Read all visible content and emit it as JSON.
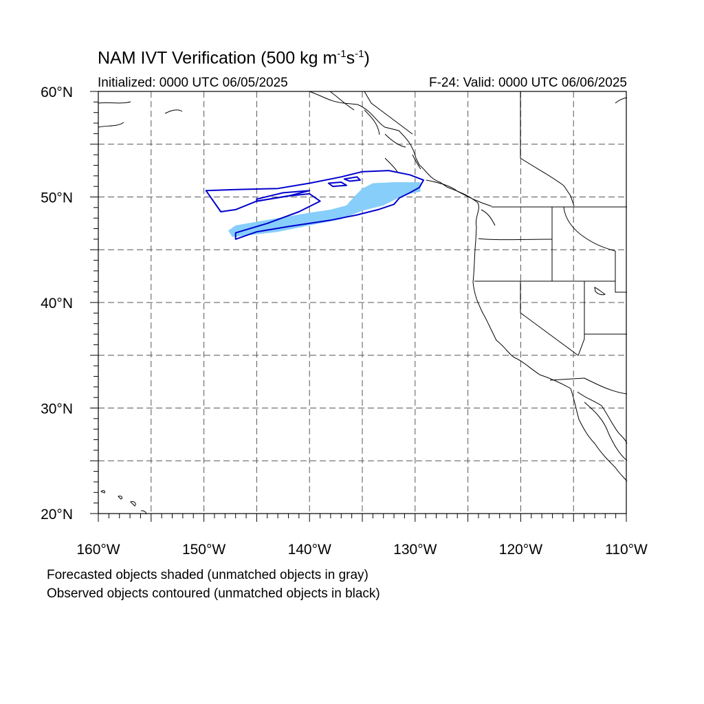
{
  "title": {
    "main": "NAM IVT Verification (500 kg m",
    "sup1": "-1",
    "mid": "s",
    "sup2": "-1",
    "end": ")"
  },
  "subtitle_left": "Initialized: 0000 UTC 06/05/2025",
  "subtitle_right": "F-24: Valid: 0000 UTC 06/06/2025",
  "footnotes": [
    "Forecasted objects shaded (unmatched objects in gray)",
    "Observed objects contoured (unmatched objects in black)"
  ],
  "map": {
    "lon_range": [
      -160,
      -110
    ],
    "lat_range": [
      20,
      60
    ],
    "grid_lines": "dashed",
    "lon_labels": [
      "160°W",
      "150°W",
      "140°W",
      "130°W",
      "120°W",
      "110°W"
    ],
    "lat_labels": [
      "20°N",
      "30°N",
      "40°N",
      "50°N",
      "60°N"
    ],
    "colors": {
      "forecast_fill": "#87cefa",
      "observed_contour": "#0000cd",
      "coastline": "#000000",
      "grid": "#555555"
    },
    "objects": [
      {
        "type": "forecast",
        "matched": true,
        "outline": [
          [
            -147,
            47.3
          ],
          [
            -143,
            48.0
          ],
          [
            -140,
            48.5
          ],
          [
            -138,
            48.8
          ],
          [
            -136.5,
            49.2
          ],
          [
            -135.7,
            50.1
          ],
          [
            -135,
            50.8
          ],
          [
            -134,
            51.3
          ],
          [
            -132,
            51.4
          ],
          [
            -129.5,
            51.4
          ],
          [
            -129.5,
            50.5
          ],
          [
            -131,
            50.2
          ],
          [
            -133,
            49.2
          ],
          [
            -135,
            48.7
          ],
          [
            -137,
            47.9
          ],
          [
            -140,
            47.3
          ],
          [
            -143,
            46.7
          ],
          [
            -147.3,
            46.2
          ],
          [
            -147.7,
            46.8
          ]
        ]
      },
      {
        "type": "observed",
        "matched": true,
        "outline": [
          [
            -149.8,
            50.6
          ],
          [
            -147,
            50.7
          ],
          [
            -143,
            50.8
          ],
          [
            -140,
            51.3
          ],
          [
            -137,
            51.9
          ],
          [
            -135,
            52.4
          ],
          [
            -132.5,
            52.5
          ],
          [
            -130.5,
            52.1
          ],
          [
            -129.2,
            51.6
          ],
          [
            -129.6,
            50.9
          ],
          [
            -130.5,
            50.4
          ],
          [
            -131.5,
            49.9
          ],
          [
            -132,
            49.3
          ],
          [
            -133.5,
            48.8
          ],
          [
            -135.5,
            48.3
          ],
          [
            -138,
            47.8
          ],
          [
            -142,
            47.2
          ],
          [
            -145,
            46.7
          ],
          [
            -147,
            46.0
          ],
          [
            -147,
            46.6
          ],
          [
            -144,
            47.5
          ],
          [
            -141,
            48.6
          ],
          [
            -139,
            49.6
          ],
          [
            -140,
            50.3
          ],
          [
            -142,
            50.1
          ],
          [
            -145,
            49.6
          ],
          [
            -147,
            48.8
          ],
          [
            -148.4,
            48.6
          ]
        ]
      },
      {
        "type": "observed-hole",
        "outline": [
          [
            -145,
            49.6
          ],
          [
            -142,
            50.1
          ],
          [
            -140,
            50.6
          ],
          [
            -142.5,
            50.4
          ],
          [
            -145,
            49.8
          ]
        ]
      },
      {
        "type": "observed-hole",
        "outline": [
          [
            -138.2,
            51.3
          ],
          [
            -137,
            51.4
          ],
          [
            -136.5,
            51.1
          ],
          [
            -137.8,
            51.0
          ]
        ]
      },
      {
        "type": "observed-hole",
        "outline": [
          [
            -136.7,
            51.7
          ],
          [
            -135.5,
            51.9
          ],
          [
            -135.2,
            51.6
          ],
          [
            -136.2,
            51.5
          ]
        ]
      }
    ]
  }
}
